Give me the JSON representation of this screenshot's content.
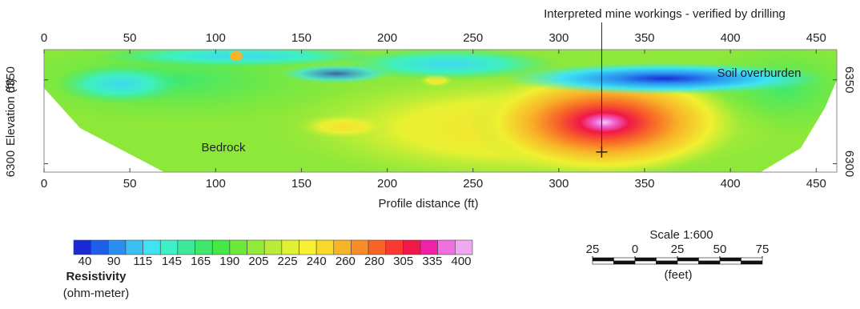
{
  "chart_data": {
    "type": "section",
    "x_label": "Profile distance (ft)",
    "y_label": "Elevation (ft)",
    "xlim": [
      0,
      462
    ],
    "ylim": [
      6295,
      6368
    ],
    "xticks": [
      0,
      50,
      100,
      150,
      200,
      250,
      300,
      350,
      400,
      450
    ],
    "yticks": [
      6300,
      6350
    ],
    "annotations": {
      "drilling": "Interpreted mine workings - verified by drilling",
      "soil": "Soil overburden",
      "bedrock": "Bedrock"
    },
    "drill_hole": {
      "x": 325,
      "y": 6307
    },
    "colorbar": {
      "label": "Resistivity",
      "unit": "(ohm-meter)",
      "ticks": [
        40,
        90,
        115,
        145,
        165,
        190,
        205,
        225,
        240,
        260,
        280,
        305,
        335,
        400
      ],
      "colors": [
        "#1a2bd6",
        "#1f5ee8",
        "#2a8ef0",
        "#3cc0f2",
        "#3fe3f2",
        "#3ef0c8",
        "#3ee89a",
        "#3fe86a",
        "#45e845",
        "#6ee83a",
        "#94ea38",
        "#b8ec36",
        "#e0f032",
        "#f8f030",
        "#f8d828",
        "#f8b428",
        "#f88c28",
        "#f86428",
        "#f83a30",
        "#f01848",
        "#f020a8",
        "#f070e0",
        "#f0a8f0"
      ]
    },
    "scale_bar": {
      "title": "Scale 1:600",
      "ticks": [
        {
          "value": -25,
          "label": "25"
        },
        0,
        25,
        50,
        75
      ],
      "unit": "(feet)"
    }
  }
}
